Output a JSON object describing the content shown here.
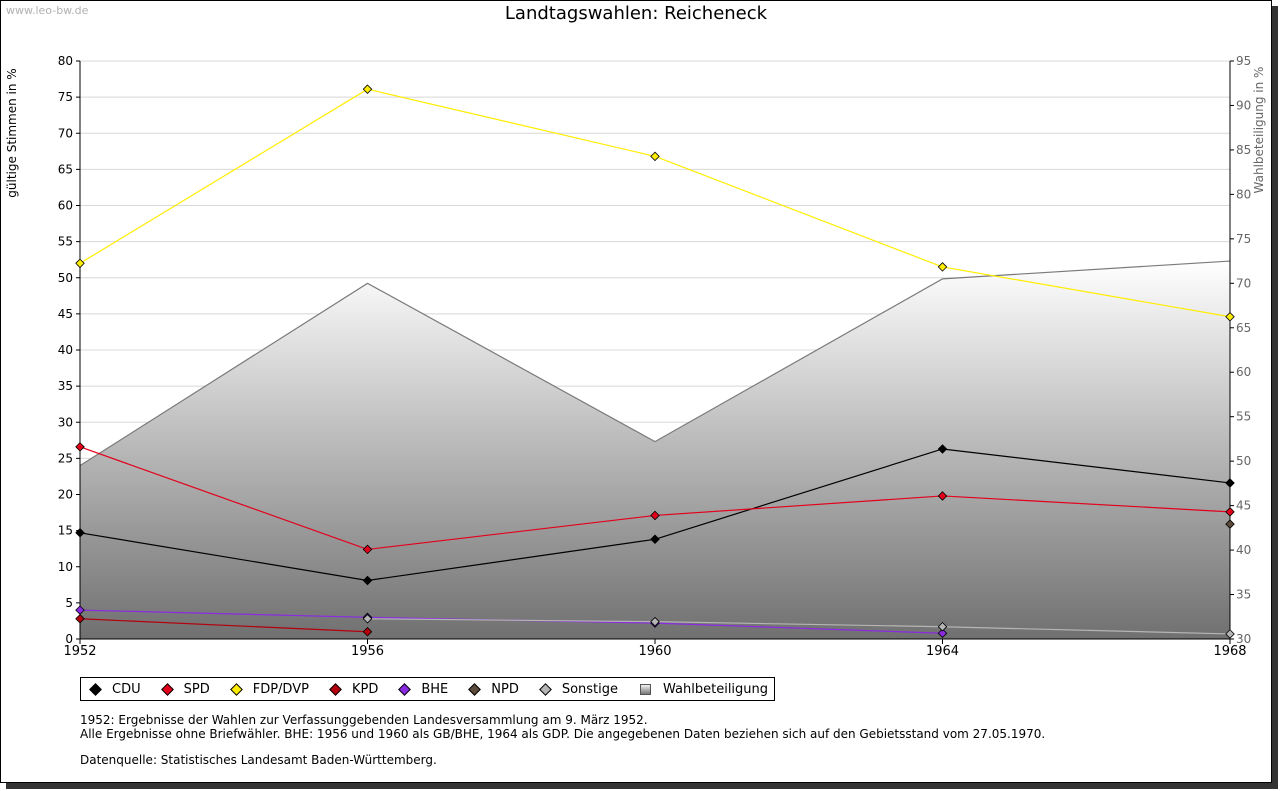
{
  "watermark": "www.leo-bw.de",
  "chart_data": {
    "type": "line",
    "title": "Landtagswahlen: Reicheneck",
    "ylabel": "gültige Stimmen in %",
    "y2label": "Wahlbeteiligung in %",
    "x": [
      1952,
      1956,
      1960,
      1964,
      1968
    ],
    "ylim": [
      0,
      80
    ],
    "yticks": [
      0,
      5,
      10,
      15,
      20,
      25,
      30,
      35,
      40,
      45,
      50,
      55,
      60,
      65,
      70,
      75,
      80
    ],
    "y2lim": [
      30,
      95
    ],
    "y2ticks": [
      30,
      35,
      40,
      45,
      50,
      55,
      60,
      65,
      70,
      75,
      80,
      85,
      90,
      95
    ],
    "grid": true,
    "legend_position": "bottom",
    "series": [
      {
        "name": "CDU",
        "color": "#000000",
        "values": [
          14.7,
          8.1,
          13.8,
          26.3,
          21.6
        ]
      },
      {
        "name": "SPD",
        "color": "#e3001b",
        "values": [
          26.6,
          12.4,
          17.1,
          19.8,
          17.6
        ]
      },
      {
        "name": "FDP/DVP",
        "color": "#ffed00",
        "values": [
          52.0,
          76.1,
          66.8,
          51.5,
          44.6
        ]
      },
      {
        "name": "KPD",
        "color": "#b3000c",
        "values": [
          2.8,
          1.0,
          null,
          null,
          null
        ]
      },
      {
        "name": "BHE",
        "color": "#8a2be2",
        "values": [
          4.0,
          3.0,
          2.2,
          0.8,
          null
        ]
      },
      {
        "name": "NPD",
        "color": "#5c4a3a",
        "values": [
          null,
          null,
          null,
          null,
          15.9
        ]
      },
      {
        "name": "Sonstige",
        "color": "#b5b5b5",
        "values": [
          null,
          2.8,
          2.4,
          1.7,
          0.7
        ]
      },
      {
        "name": "Wahlbeteiligung",
        "color": "#808080",
        "axis": "right",
        "type": "area",
        "values": [
          49.5,
          70.0,
          52.2,
          70.5,
          72.5
        ]
      }
    ]
  },
  "notes": [
    "1952: Ergebnisse der Wahlen zur Verfassunggebenden Landesversammlung am 9. März 1952.",
    "Alle Ergebnisse ohne Briefwähler. BHE: 1956 und 1960 als GB/BHE, 1964 als GDP. Die angegebenen Daten beziehen sich auf den Gebietsstand vom 27.05.1970."
  ],
  "source": "Datenquelle: Statistisches Landesamt Baden-Württemberg."
}
